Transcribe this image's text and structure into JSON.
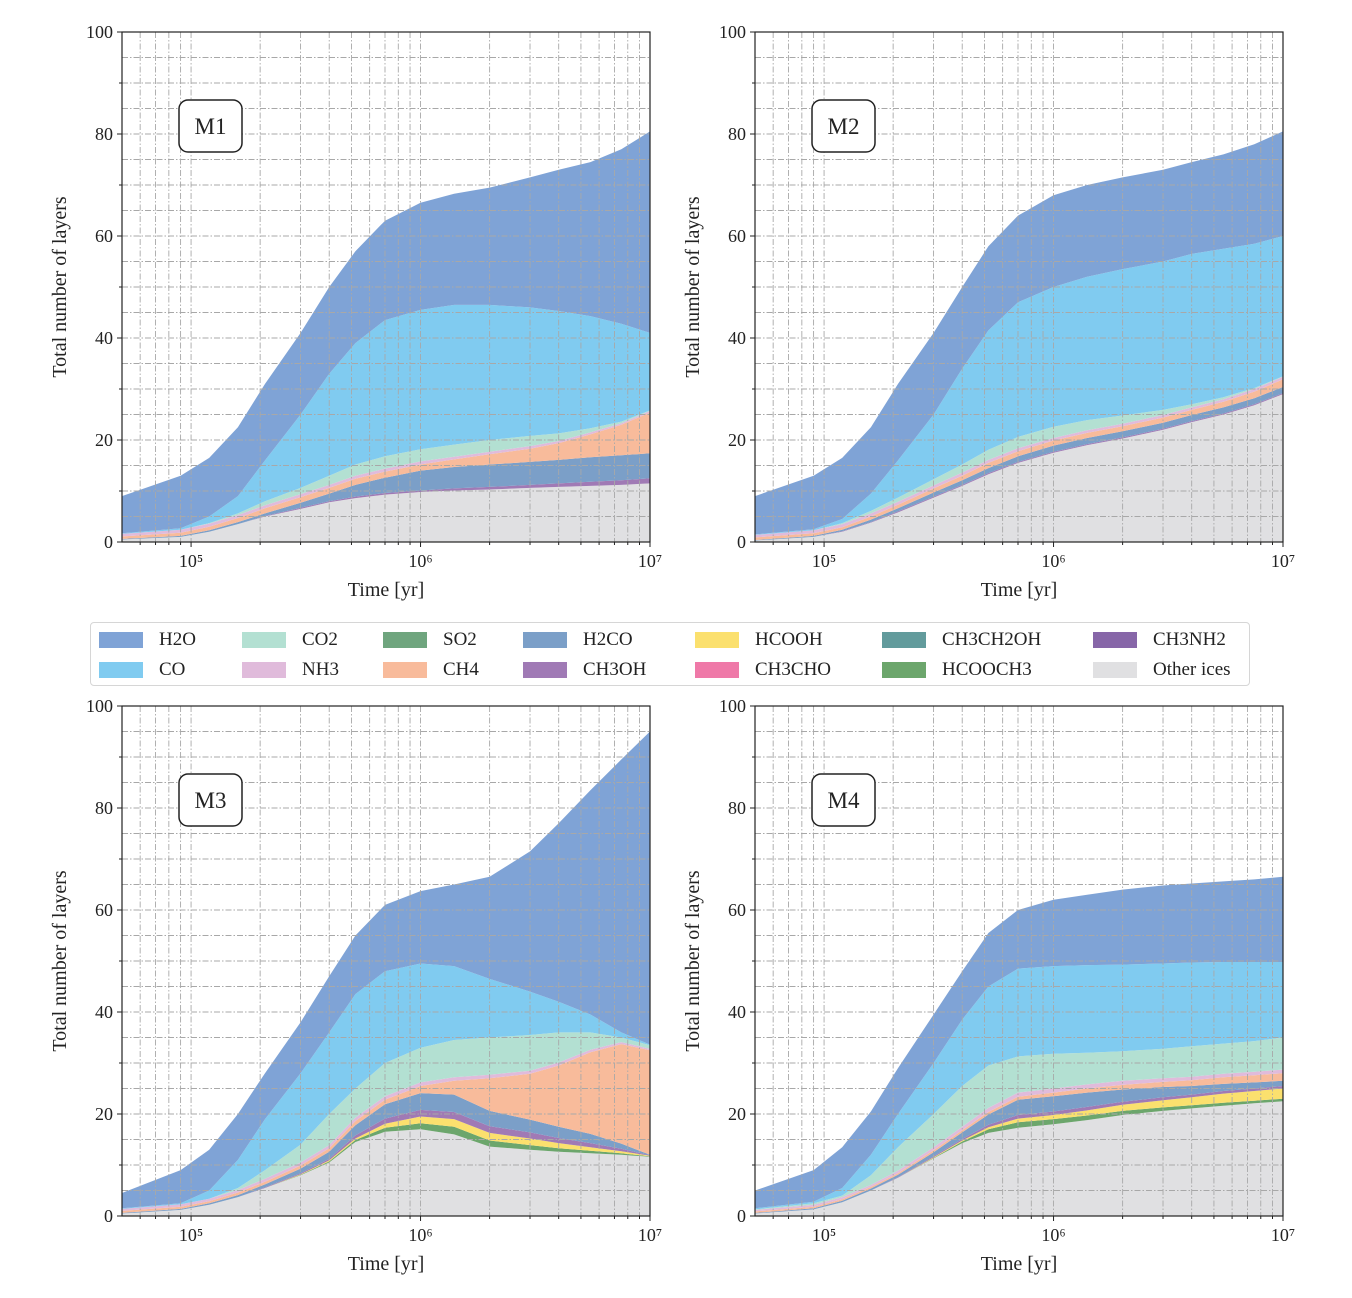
{
  "colors": {
    "H2O": "#7fa3d6",
    "CO": "#80cbf0",
    "CO2": "#b3e0d2",
    "NH3": "#e0bbdb",
    "SO2": "#6fa57e",
    "CH4": "#f8bb9b",
    "H2CO": "#7b9fc8",
    "CH3OH": "#a07ab5",
    "HCOOH": "#fbe06e",
    "CH3CHO": "#ef79a8",
    "CH3CH2OH": "#629b9c",
    "HCOOCH3": "#6ca66c",
    "CH3NH2": "#8766a8",
    "Other ices": "#e0e0e2"
  },
  "legend": {
    "placement": "center (between rows)",
    "entries": [
      "H2O",
      "CO",
      "CO2",
      "NH3",
      "SO2",
      "CH4",
      "H2CO",
      "CH3OH",
      "HCOOH",
      "CH3CHO",
      "CH3CH2OH",
      "HCOOCH3",
      "CH3NH2",
      "Other ices"
    ]
  },
  "chart_data": [
    {
      "type": "area",
      "stacked": true,
      "title": "M1",
      "xlabel": "Time [yr]",
      "ylabel": "Total number of layers",
      "xscale": "log",
      "xlim": [
        50000,
        10000000
      ],
      "ylim": [
        0,
        100
      ],
      "xticks": [
        "10⁵",
        "10⁶",
        "10⁷"
      ],
      "yticks": [
        "0",
        "20",
        "40",
        "60",
        "80",
        "100"
      ],
      "grid": true,
      "x": [
        50000,
        90000,
        120000,
        160000,
        210000,
        300000,
        400000,
        520000,
        700000,
        1000000,
        1400000,
        2000000,
        3000000,
        4000000,
        5500000,
        7500000,
        10000000
      ],
      "series": [
        {
          "name": "Other ices",
          "values": [
            0.5,
            1,
            2,
            3.5,
            5,
            6.5,
            7.8,
            8.6,
            9.3,
            9.8,
            10.1,
            10.3,
            10.6,
            10.8,
            11,
            11.2,
            11.5
          ]
        },
        {
          "name": "CH3OH",
          "values": [
            0,
            0,
            0,
            0,
            0.1,
            0.2,
            0.2,
            0.3,
            0.3,
            0.3,
            0.4,
            0.5,
            0.6,
            0.7,
            0.8,
            0.9,
            1.0
          ]
        },
        {
          "name": "H2CO",
          "values": [
            0.1,
            0.2,
            0.3,
            0.4,
            0.5,
            1,
            1.5,
            2.3,
            3,
            3.9,
            4.2,
            4.4,
            4.5,
            4.6,
            4.8,
            4.9,
            4.9
          ]
        },
        {
          "name": "CH4",
          "values": [
            0.5,
            0.6,
            0.7,
            0.8,
            1,
            1.1,
            1.1,
            1.2,
            1.2,
            1.2,
            1.5,
            2,
            2.6,
            3.3,
            4.5,
            6,
            8
          ]
        },
        {
          "name": "NH3",
          "values": [
            0.5,
            0.6,
            0.6,
            0.6,
            0.6,
            0.6,
            0.6,
            0.6,
            0.6,
            0.6,
            0.5,
            0.5,
            0.5,
            0.4,
            0.4,
            0.3,
            0.3
          ]
        },
        {
          "name": "CO2",
          "values": [
            0,
            0,
            0.1,
            0.3,
            0.8,
            1.2,
            1.8,
            2.2,
            2.4,
            2.4,
            2.4,
            2.3,
            2,
            1.5,
            0.8,
            0.3,
            0.1
          ]
        },
        {
          "name": "CO",
          "values": [
            0.1,
            0.3,
            1.3,
            3.4,
            8,
            14.4,
            20,
            23.8,
            26.7,
            27.3,
            27.4,
            26.5,
            25.2,
            24,
            22,
            19.2,
            15.2
          ]
        },
        {
          "name": "H2O",
          "values": [
            7.3,
            10.3,
            11.5,
            13.5,
            15,
            16,
            17,
            18,
            19.5,
            21,
            21.8,
            23,
            25.5,
            27.7,
            30.2,
            34.2,
            39.5
          ]
        }
      ]
    },
    {
      "type": "area",
      "stacked": true,
      "title": "M2",
      "xlabel": "Time [yr]",
      "ylabel": "Total number of layers",
      "xscale": "log",
      "xlim": [
        50000,
        10000000
      ],
      "ylim": [
        0,
        100
      ],
      "xticks": [
        "10⁵",
        "10⁶",
        "10⁷"
      ],
      "yticks": [
        "0",
        "20",
        "40",
        "60",
        "80",
        "100"
      ],
      "grid": true,
      "x": [
        50000,
        90000,
        120000,
        160000,
        210000,
        300000,
        400000,
        520000,
        700000,
        1000000,
        1400000,
        2000000,
        3000000,
        4000000,
        5500000,
        7500000,
        10000000
      ],
      "series": [
        {
          "name": "Other ices",
          "values": [
            0.3,
            1,
            2,
            3.8,
            5.8,
            8.7,
            11,
            13.3,
            15.5,
            17.5,
            19,
            20.3,
            22,
            23.5,
            25,
            26.8,
            29
          ]
        },
        {
          "name": "CH3OH",
          "values": [
            0,
            0,
            0.1,
            0.1,
            0.2,
            0.2,
            0.2,
            0.2,
            0.2,
            0.2,
            0.2,
            0.2,
            0.2,
            0.2,
            0.2,
            0.2,
            0.2
          ]
        },
        {
          "name": "H2CO",
          "values": [
            0.1,
            0.2,
            0.3,
            0.5,
            0.6,
            0.8,
            0.9,
            1,
            1.1,
            1.2,
            1.2,
            1.2,
            1.2,
            1.2,
            1.2,
            1.2,
            1.2
          ]
        },
        {
          "name": "CH4",
          "values": [
            0.5,
            0.5,
            0.5,
            0.6,
            0.7,
            0.8,
            0.9,
            1,
            1,
            1,
            1,
            1,
            1,
            1,
            1.1,
            1.3,
            1.5
          ]
        },
        {
          "name": "NH3",
          "values": [
            0.5,
            0.6,
            0.6,
            0.6,
            0.6,
            0.6,
            0.6,
            0.6,
            0.6,
            0.5,
            0.5,
            0.5,
            0.5,
            0.5,
            0.5,
            0.5,
            0.5
          ]
        },
        {
          "name": "CO2",
          "values": [
            0,
            0,
            0.2,
            0.5,
            0.8,
            1.2,
            1.6,
            2,
            2.2,
            2.2,
            2,
            1.6,
            1,
            0.6,
            0.4,
            0.2,
            0.1
          ]
        },
        {
          "name": "CO",
          "values": [
            0.1,
            0.2,
            0.8,
            3.4,
            7.3,
            12.7,
            18.8,
            23.4,
            26.4,
            27.4,
            28.1,
            28.7,
            29.1,
            29.5,
            29.1,
            28.3,
            27.5
          ]
        },
        {
          "name": "H2O",
          "values": [
            7.5,
            10.5,
            12,
            13,
            15,
            16,
            16,
            16.5,
            17,
            18,
            18,
            18,
            18,
            18,
            18.5,
            19.5,
            20.5
          ]
        }
      ]
    },
    {
      "type": "area",
      "stacked": true,
      "title": "M3",
      "xlabel": "Time [yr]",
      "ylabel": "Total number of layers",
      "xscale": "log",
      "xlim": [
        50000,
        10000000
      ],
      "ylim": [
        0,
        100
      ],
      "xticks": [
        "10⁵",
        "10⁶",
        "10⁷"
      ],
      "yticks": [
        "0",
        "20",
        "40",
        "60",
        "80",
        "100"
      ],
      "grid": true,
      "x": [
        50000,
        90000,
        120000,
        160000,
        210000,
        300000,
        400000,
        520000,
        700000,
        1000000,
        1400000,
        2000000,
        3000000,
        4000000,
        5500000,
        7500000,
        10000000
      ],
      "series": [
        {
          "name": "Other ices",
          "values": [
            0.5,
            1.2,
            2.2,
            3.7,
            5.5,
            8,
            10.5,
            14.5,
            16.5,
            17,
            16,
            13.6,
            13,
            12.6,
            12.3,
            12,
            11.6
          ]
        },
        {
          "name": "HCOOCH3",
          "values": [
            0,
            0,
            0,
            0,
            0,
            0.1,
            0.2,
            0.4,
            0.8,
            1.2,
            1.5,
            1.2,
            0.9,
            0.7,
            0.5,
            0.3,
            0.1
          ]
        },
        {
          "name": "HCOOH",
          "values": [
            0,
            0,
            0,
            0,
            0,
            0.1,
            0.2,
            0.3,
            0.8,
            1.3,
            1.5,
            1.5,
            1.3,
            1,
            0.7,
            0.4,
            0.1
          ]
        },
        {
          "name": "CH3OH",
          "values": [
            0,
            0,
            0,
            0,
            0.1,
            0.2,
            0.3,
            0.6,
            1,
            1.3,
            1.4,
            1.3,
            1.2,
            1,
            0.8,
            0.5,
            0.1
          ]
        },
        {
          "name": "H2CO",
          "values": [
            0.1,
            0.2,
            0.3,
            0.4,
            0.6,
            0.9,
            1.4,
            2,
            2.8,
            3.3,
            3.4,
            3,
            2.5,
            2.2,
            1.8,
            1,
            0.1
          ]
        },
        {
          "name": "CH4",
          "values": [
            0.4,
            0.4,
            0.4,
            0.5,
            0.5,
            0.6,
            0.7,
            0.8,
            0.9,
            1.4,
            2.7,
            6.4,
            9,
            12,
            16,
            19.5,
            20.5
          ]
        },
        {
          "name": "NH3",
          "values": [
            0.4,
            0.5,
            0.5,
            0.5,
            0.6,
            0.6,
            0.6,
            0.7,
            0.7,
            0.7,
            0.7,
            0.7,
            0.6,
            0.6,
            0.5,
            0.4,
            0.3
          ]
        },
        {
          "name": "CO2",
          "values": [
            0,
            0,
            0,
            0.4,
            1.7,
            3.5,
            6.1,
            5.7,
            6.5,
            6.8,
            7.3,
            7.3,
            7,
            5.9,
            3.4,
            0.9,
            0.7
          ]
        },
        {
          "name": "CO",
          "values": [
            0.1,
            0.2,
            1.6,
            5.5,
            10,
            14,
            16,
            18.5,
            18,
            16.5,
            14.5,
            11.5,
            8.5,
            6,
            3.5,
            1,
            0.1
          ]
        },
        {
          "name": "H2O",
          "values": [
            3,
            6.5,
            8,
            9,
            9,
            10,
            11,
            11.5,
            13,
            14.2,
            16,
            20,
            27.5,
            35,
            44,
            53.5,
            61.4
          ]
        }
      ]
    },
    {
      "type": "area",
      "stacked": true,
      "title": "M4",
      "xlabel": "Time [yr]",
      "ylabel": "Total number of layers",
      "xscale": "log",
      "xlim": [
        50000,
        10000000
      ],
      "ylim": [
        0,
        100
      ],
      "xticks": [
        "10⁵",
        "10⁶",
        "10⁷"
      ],
      "yticks": [
        "0",
        "20",
        "40",
        "60",
        "80",
        "100"
      ],
      "grid": true,
      "x": [
        50000,
        90000,
        120000,
        160000,
        210000,
        300000,
        400000,
        520000,
        700000,
        1000000,
        1400000,
        2000000,
        3000000,
        4000000,
        5500000,
        7500000,
        10000000
      ],
      "series": [
        {
          "name": "Other ices",
          "values": [
            0.5,
            1.3,
            2.7,
            5,
            7.5,
            11.3,
            14.3,
            16.3,
            17.3,
            18,
            18.8,
            19.8,
            20.6,
            21.1,
            21.6,
            22.1,
            22.5
          ]
        },
        {
          "name": "HCOOCH3",
          "values": [
            0,
            0,
            0,
            0,
            0,
            0.1,
            0.3,
            0.7,
            1.1,
            1,
            0.9,
            0.8,
            0.7,
            0.6,
            0.6,
            0.5,
            0.5
          ]
        },
        {
          "name": "HCOOH",
          "values": [
            0,
            0,
            0,
            0,
            0,
            0.1,
            0.2,
            0.4,
            0.7,
            0.8,
            1,
            1.2,
            1.4,
            1.6,
            1.8,
            1.9,
            2
          ]
        },
        {
          "name": "CH3OH",
          "values": [
            0,
            0,
            0,
            0,
            0.1,
            0.2,
            0.3,
            0.5,
            0.7,
            0.7,
            0.7,
            0.6,
            0.6,
            0.5,
            0.5,
            0.5,
            0.5
          ]
        },
        {
          "name": "H2CO",
          "values": [
            0.1,
            0.2,
            0.3,
            0.4,
            0.5,
            0.8,
            1.3,
            2,
            3,
            3,
            2.8,
            2.4,
            2,
            1.7,
            1.4,
            1.2,
            1
          ]
        },
        {
          "name": "CH4",
          "values": [
            0.3,
            0.3,
            0.3,
            0.3,
            0.3,
            0.4,
            0.4,
            0.5,
            0.6,
            0.7,
            0.8,
            0.9,
            1,
            1.1,
            1.3,
            1.4,
            1.5
          ]
        },
        {
          "name": "NH3",
          "values": [
            0.3,
            0.4,
            0.4,
            0.4,
            0.5,
            0.6,
            0.7,
            0.8,
            0.8,
            0.8,
            0.8,
            0.8,
            0.7,
            0.7,
            0.7,
            0.7,
            0.7
          ]
        },
        {
          "name": "CO2",
          "values": [
            0.1,
            0.3,
            0.3,
            1.9,
            4.6,
            6.5,
            8,
            8.3,
            7.1,
            6.8,
            6.2,
            5.8,
            5.8,
            6,
            5.9,
            6,
            6.3
          ]
        },
        {
          "name": "CO",
          "values": [
            0.2,
            0.3,
            1.5,
            4,
            6.5,
            10,
            13,
            15.5,
            17.2,
            17.2,
            17.2,
            17,
            16.7,
            16.4,
            16,
            15.5,
            14.8
          ]
        },
        {
          "name": "H2O",
          "values": [
            3.5,
            6.2,
            8,
            8.5,
            9,
            9.5,
            9.5,
            10.5,
            11.5,
            13,
            13.8,
            14.7,
            15.3,
            15.5,
            15.8,
            16.2,
            16.7
          ]
        }
      ]
    }
  ]
}
